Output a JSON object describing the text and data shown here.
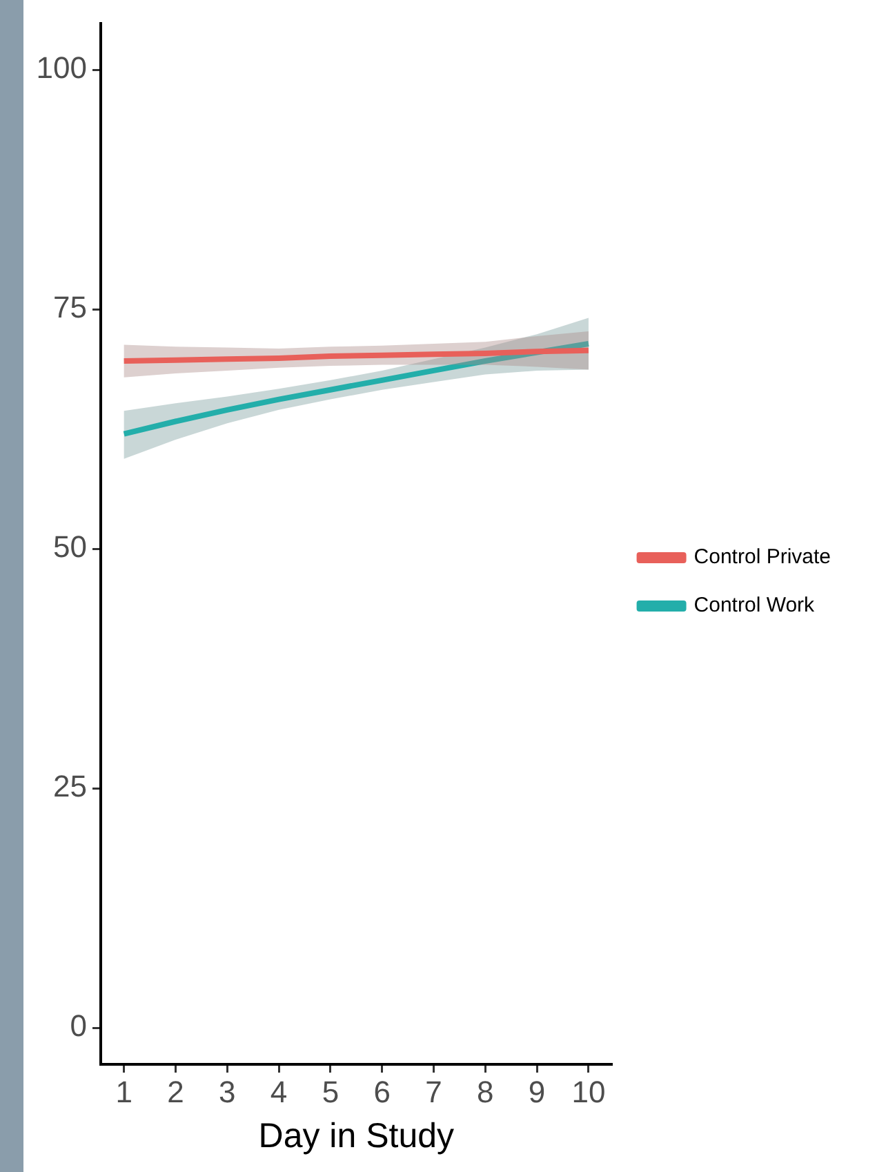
{
  "chart_data": {
    "type": "line",
    "xlabel": "Day in Study",
    "x": [
      1,
      2,
      3,
      4,
      5,
      6,
      7,
      8,
      9,
      10
    ],
    "series": [
      {
        "name": "Control Private",
        "color": "#e8605a",
        "values": [
          69.6,
          69.7,
          69.8,
          69.9,
          70.1,
          70.2,
          70.3,
          70.4,
          70.6,
          70.7
        ],
        "lower": [
          67.9,
          68.3,
          68.6,
          68.9,
          69.1,
          69.2,
          69.2,
          69.2,
          69.0,
          68.7
        ],
        "upper": [
          71.3,
          71.1,
          71.0,
          70.9,
          71.1,
          71.2,
          71.4,
          71.6,
          72.2,
          72.7
        ]
      },
      {
        "name": "Control Work",
        "color": "#23aeaa",
        "values": [
          62.0,
          63.3,
          64.5,
          65.6,
          66.6,
          67.6,
          68.6,
          69.6,
          70.5,
          71.4
        ],
        "lower": [
          59.4,
          61.4,
          63.1,
          64.5,
          65.6,
          66.6,
          67.4,
          68.2,
          68.6,
          68.7
        ],
        "upper": [
          64.4,
          65.2,
          65.9,
          66.7,
          67.6,
          68.6,
          69.8,
          71.0,
          72.4,
          74.1
        ]
      }
    ],
    "xlim": [
      0.55,
      10.45
    ],
    "xticks": [
      1,
      2,
      3,
      4,
      5,
      6,
      7,
      8,
      9,
      10
    ],
    "ylim": [
      -3.8,
      104.8
    ],
    "yticks": [
      0,
      25,
      50,
      75,
      100
    ],
    "grid": false,
    "legend": "right",
    "marker": "none",
    "line_style": "solid"
  }
}
